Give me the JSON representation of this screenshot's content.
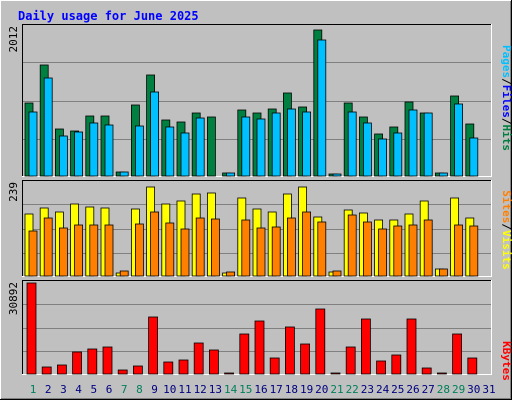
{
  "title": "Daily usage for June 2025",
  "colors": {
    "background": "#c0c0c0",
    "title": "#0000ff",
    "hits": "#008040",
    "files": "#00c0ff",
    "pages": "#00c0ff",
    "visits": "#ffff00",
    "sites": "#ff8000",
    "kbytes": "#ff0000",
    "weekday_label": "#000080",
    "weekend_label": "#00805c"
  },
  "chart_data": [
    {
      "type": "bar",
      "title": "Daily usage for June 2025",
      "ylabel": "Pages / Files / Hits",
      "ymax_label": "2012",
      "ylim": [
        0,
        2012
      ],
      "categories": [
        "1",
        "2",
        "3",
        "4",
        "5",
        "6",
        "7",
        "8",
        "9",
        "10",
        "11",
        "12",
        "13",
        "14",
        "15",
        "16",
        "17",
        "18",
        "19",
        "20",
        "21",
        "22",
        "23",
        "24",
        "25",
        "26",
        "27",
        "28",
        "29",
        "30",
        "31"
      ],
      "series": [
        {
          "name": "Hits",
          "values": [
            985,
            1502,
            640,
            610,
            810,
            810,
            60,
            955,
            1360,
            750,
            725,
            845,
            800,
            40,
            885,
            855,
            905,
            1125,
            925,
            1970,
            30,
            980,
            800,
            565,
            655,
            995,
            850,
            40,
            1080,
            700,
            0
          ]
        },
        {
          "name": "Files",
          "values": [
            860,
            1320,
            540,
            590,
            710,
            695,
            60,
            680,
            1135,
            660,
            575,
            780,
            0,
            40,
            790,
            770,
            850,
            905,
            865,
            1840,
            30,
            860,
            720,
            500,
            580,
            890,
            850,
            40,
            970,
            510,
            0
          ]
        },
        {
          "name": "Pages",
          "values": [
            0,
            0,
            0,
            0,
            0,
            0,
            0,
            0,
            0,
            0,
            0,
            0,
            0,
            0,
            0,
            0,
            0,
            0,
            0,
            0,
            0,
            0,
            0,
            0,
            0,
            0,
            0,
            0,
            0,
            0,
            0
          ]
        }
      ]
    },
    {
      "type": "bar",
      "ylabel": "Sites / Visits",
      "ymax_label": "239",
      "ylim": [
        0,
        239
      ],
      "categories": [
        "1",
        "2",
        "3",
        "4",
        "5",
        "6",
        "7",
        "8",
        "9",
        "10",
        "11",
        "12",
        "13",
        "14",
        "15",
        "16",
        "17",
        "18",
        "19",
        "20",
        "21",
        "22",
        "23",
        "24",
        "25",
        "26",
        "27",
        "28",
        "29",
        "30",
        "31"
      ],
      "series": [
        {
          "name": "Visits",
          "values": [
            160,
            175,
            165,
            185,
            178,
            175,
            8,
            172,
            230,
            185,
            193,
            210,
            213,
            8,
            200,
            172,
            165,
            212,
            230,
            152,
            10,
            170,
            162,
            143,
            145,
            160,
            193,
            18,
            200,
            148,
            0
          ]
        },
        {
          "name": "Sites",
          "values": [
            115,
            148,
            124,
            132,
            132,
            130,
            13,
            133,
            164,
            135,
            122,
            148,
            146,
            10,
            143,
            124,
            126,
            148,
            164,
            138,
            12,
            158,
            140,
            122,
            128,
            130,
            143,
            18,
            132,
            128,
            0
          ]
        }
      ]
    },
    {
      "type": "bar",
      "ylabel": "KBytes",
      "ymax_label": "30892",
      "ylim": [
        0,
        30892
      ],
      "categories": [
        "1",
        "2",
        "3",
        "4",
        "5",
        "6",
        "7",
        "8",
        "9",
        "10",
        "11",
        "12",
        "13",
        "14",
        "15",
        "16",
        "17",
        "18",
        "19",
        "20",
        "21",
        "22",
        "23",
        "24",
        "25",
        "26",
        "27",
        "28",
        "29",
        "30",
        "31"
      ],
      "series": [
        {
          "name": "KBytes",
          "values": [
            30892,
            2400,
            3100,
            7400,
            8400,
            9300,
            1500,
            2700,
            19500,
            4150,
            4900,
            10400,
            8000,
            300,
            13500,
            18000,
            5600,
            16000,
            10300,
            22100,
            400,
            9100,
            18600,
            4300,
            6600,
            18600,
            2200,
            200,
            13600,
            5500,
            0
          ]
        }
      ]
    }
  ],
  "weekend_days": [
    1,
    7,
    8,
    14,
    15,
    21,
    22,
    28,
    29
  ]
}
